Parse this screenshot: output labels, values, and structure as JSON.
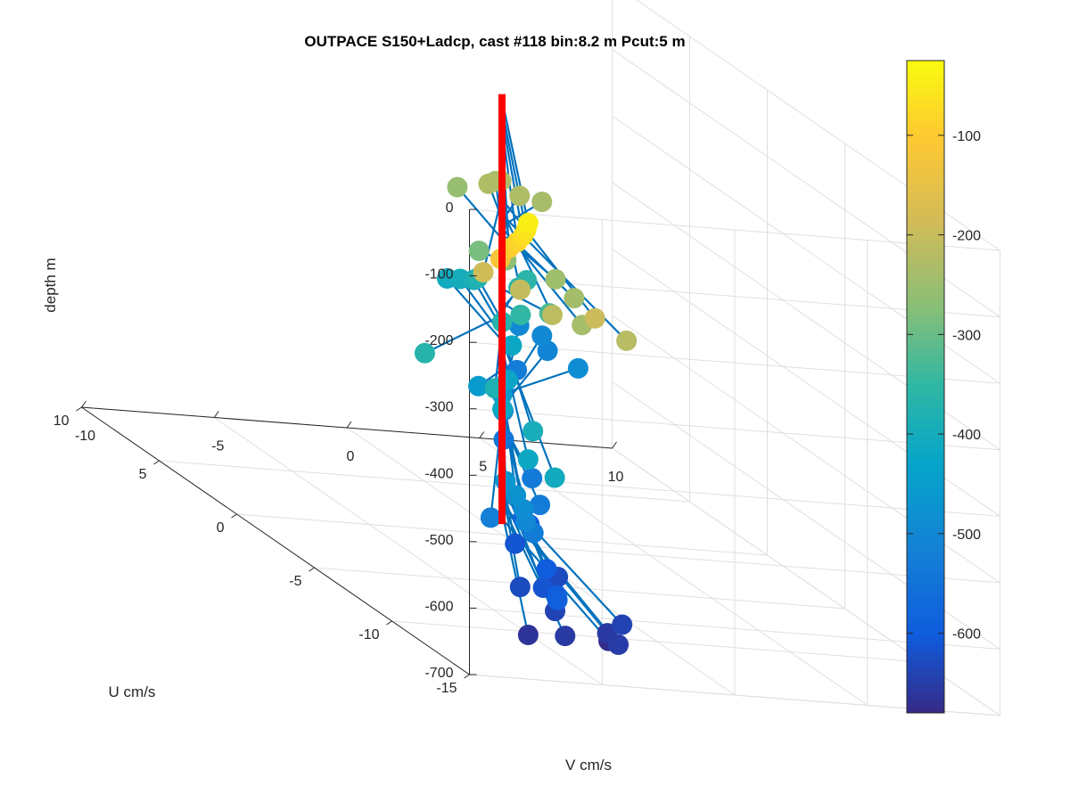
{
  "chart_data": {
    "type": "scatter",
    "title": "OUTPACE S150+Ladcp, cast #118 bin:8.2 m  Pcut:5 m",
    "xlabel": "V cm/s",
    "ylabel": "U cm/s",
    "zlabel": "depth m",
    "xlim": [
      -10,
      10
    ],
    "ylim": [
      -15,
      10
    ],
    "zlim": [
      -700,
      0
    ],
    "x_ticks": [
      "-10",
      "-5",
      "0",
      "5",
      "10"
    ],
    "y_ticks": [
      "-15",
      "-10",
      "-5",
      "0",
      "5",
      "10"
    ],
    "z_ticks": [
      "0",
      "-100",
      "-200",
      "-300",
      "-400",
      "-500",
      "-600",
      "-700"
    ],
    "colorbar": {
      "range": [
        -680,
        -25
      ],
      "ticks": [
        "-100",
        "-200",
        "-300",
        "-400",
        "-500",
        "-600"
      ],
      "colormap": "parula"
    },
    "grid": true,
    "profile_color": "#ff0000",
    "stick_color": "#0072bd",
    "marker_note": "Velocity vectors drawn from a vertical red reference line at V=0,U=0; markers coloured by depth",
    "points": [
      {
        "v": -6.5,
        "u": -12.8,
        "depth": -45
      },
      {
        "v": -6.4,
        "u": -12.5,
        "depth": -60
      },
      {
        "v": -6.4,
        "u": -12.3,
        "depth": -72
      },
      {
        "v": -6.5,
        "u": -12.1,
        "depth": -85
      },
      {
        "v": -6.7,
        "u": -11.9,
        "depth": -98
      },
      {
        "v": -6.9,
        "u": -11.7,
        "depth": -118
      },
      {
        "v": -5.5,
        "u": -8.2,
        "depth": -190
      },
      {
        "v": -3.4,
        "u": -11.8,
        "depth": -195
      },
      {
        "v": -4.4,
        "u": -8.7,
        "depth": -205
      },
      {
        "v": -4.3,
        "u": -10.6,
        "depth": -212
      },
      {
        "v": -2.5,
        "u": -12.3,
        "depth": -218
      },
      {
        "v": -2.6,
        "u": -9.6,
        "depth": -238
      },
      {
        "v": -1.2,
        "u": -6.7,
        "depth": -240
      },
      {
        "v": -0.5,
        "u": -4.3,
        "depth": -248
      },
      {
        "v": 1.6,
        "u": 3.6,
        "depth": -225
      },
      {
        "v": 2.3,
        "u": 2.8,
        "depth": -228
      },
      {
        "v": 2.6,
        "u": 4.5,
        "depth": -232
      },
      {
        "v": 3.2,
        "u": 2.9,
        "depth": -236
      },
      {
        "v": 2.8,
        "u": 5.2,
        "depth": -243
      },
      {
        "v": 1.3,
        "u": 5.1,
        "depth": -255
      },
      {
        "v": -0.6,
        "u": -1.3,
        "depth": -268
      },
      {
        "v": -0.4,
        "u": 0.8,
        "depth": -287
      },
      {
        "v": 0.5,
        "u": -2.2,
        "depth": -330
      },
      {
        "v": 0.0,
        "u": -1.2,
        "depth": -350
      },
      {
        "v": -5.6,
        "u": -4.6,
        "depth": -370
      },
      {
        "v": -4.3,
        "u": -6.9,
        "depth": -382
      },
      {
        "v": -4.8,
        "u": -10.2,
        "depth": -395
      },
      {
        "v": -0.4,
        "u": -0.7,
        "depth": -370
      },
      {
        "v": 2.8,
        "u": 3.2,
        "depth": -360
      },
      {
        "v": 2.2,
        "u": 2.7,
        "depth": -365
      },
      {
        "v": 1.6,
        "u": 4.3,
        "depth": -378
      },
      {
        "v": 1.8,
        "u": 4.9,
        "depth": -390
      },
      {
        "v": 1.7,
        "u": 5.6,
        "depth": -400
      },
      {
        "v": 1.5,
        "u": 6.1,
        "depth": -408
      },
      {
        "v": -6.2,
        "u": -14.0,
        "depth": -408
      },
      {
        "v": -5.8,
        "u": -11.6,
        "depth": -418
      },
      {
        "v": -3.9,
        "u": -6.7,
        "depth": -415
      },
      {
        "v": -1.6,
        "u": -3.1,
        "depth": -422
      },
      {
        "v": 0.6,
        "u": 0.4,
        "depth": -420
      },
      {
        "v": -2.0,
        "u": -1.9,
        "depth": -452
      },
      {
        "v": -1.4,
        "u": -2.4,
        "depth": -455
      },
      {
        "v": -6.3,
        "u": -11.0,
        "depth": -462
      },
      {
        "v": -6.2,
        "u": -11.5,
        "depth": -475
      },
      {
        "v": -6.2,
        "u": -12.0,
        "depth": -488
      },
      {
        "v": -6.3,
        "u": -12.3,
        "depth": -502
      },
      {
        "v": -6.8,
        "u": -10.9,
        "depth": -520
      },
      {
        "v": -5.6,
        "u": -11.6,
        "depth": -528
      },
      {
        "v": -3.6,
        "u": -8.6,
        "depth": -528
      },
      {
        "v": -2.2,
        "u": -5.7,
        "depth": -530
      },
      {
        "v": -0.3,
        "u": -0.6,
        "depth": -505
      },
      {
        "v": 4.8,
        "u": 3.3,
        "depth": -488
      },
      {
        "v": 5.6,
        "u": 7.0,
        "depth": -496
      },
      {
        "v": 5.5,
        "u": 8.3,
        "depth": -502
      },
      {
        "v": 5.4,
        "u": 6.3,
        "depth": -508
      },
      {
        "v": 3.6,
        "u": 5.2,
        "depth": -525
      },
      {
        "v": -0.4,
        "u": -0.8,
        "depth": -545
      },
      {
        "v": -6.1,
        "u": -14.0,
        "depth": -592
      },
      {
        "v": -5.6,
        "u": -13.1,
        "depth": -598
      },
      {
        "v": -4.4,
        "u": -10.4,
        "depth": -598
      },
      {
        "v": -2.6,
        "u": -5.8,
        "depth": -590
      },
      {
        "v": -2.3,
        "u": -5.7,
        "depth": -600
      },
      {
        "v": -3.6,
        "u": -7.0,
        "depth": -612
      },
      {
        "v": -5.0,
        "u": -11.2,
        "depth": -615
      },
      {
        "v": -3.8,
        "u": -14.0,
        "depth": -652
      },
      {
        "v": -3.4,
        "u": -12.6,
        "depth": -656
      },
      {
        "v": -5.4,
        "u": -13.3,
        "depth": -655
      },
      {
        "v": -6.5,
        "u": -12.8,
        "depth": -665
      },
      {
        "v": -4.9,
        "u": -11.8,
        "depth": -640
      },
      {
        "v": -5.4,
        "u": -10.4,
        "depth": -628
      },
      {
        "v": -3.1,
        "u": -8.9,
        "depth": -630
      },
      {
        "v": -2.9,
        "u": -12.7,
        "depth": -640
      },
      {
        "v": -3.0,
        "u": -12.0,
        "depth": -676
      }
    ]
  }
}
